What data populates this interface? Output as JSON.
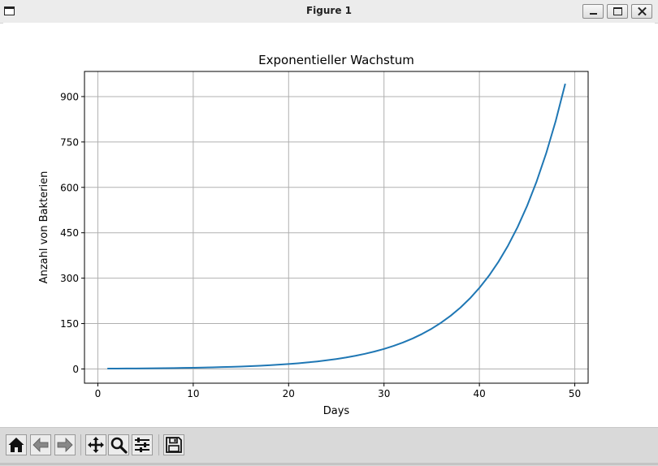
{
  "window": {
    "title": "Figure 1"
  },
  "toolbar": {
    "buttons": [
      {
        "name": "home-button",
        "icon": "home-icon"
      },
      {
        "name": "back-button",
        "icon": "arrow-left-icon"
      },
      {
        "name": "forward-button",
        "icon": "arrow-right-icon"
      },
      {
        "name": "pan-button",
        "icon": "move-icon"
      },
      {
        "name": "zoom-button",
        "icon": "magnifier-icon"
      },
      {
        "name": "configure-subplots-button",
        "icon": "sliders-icon"
      },
      {
        "name": "save-button",
        "icon": "floppy-disk-icon"
      }
    ]
  },
  "chart_data": {
    "type": "line",
    "title": "Exponentieller Wachstum",
    "xlabel": "Days",
    "ylabel": "Anzahl von Bakterien",
    "xlim": [
      -1.4,
      51.4
    ],
    "ylim": [
      -47,
      983
    ],
    "xticks": [
      0,
      10,
      20,
      30,
      40,
      50
    ],
    "yticks": [
      0,
      150,
      300,
      450,
      600,
      750,
      900
    ],
    "grid": true,
    "color": "#1f77b4",
    "series": [
      {
        "x": [
          1,
          2,
          3,
          4,
          5,
          6,
          7,
          8,
          9,
          10,
          11,
          12,
          13,
          14,
          15,
          16,
          17,
          18,
          19,
          20,
          21,
          22,
          23,
          24,
          25,
          26,
          27,
          28,
          29,
          30,
          31,
          32,
          33,
          34,
          35,
          36,
          37,
          38,
          39,
          40,
          41,
          42,
          43,
          44,
          45,
          46,
          47,
          48,
          49
        ],
        "y": [
          1.15,
          1.32,
          1.52,
          1.75,
          2.01,
          2.31,
          2.66,
          3.06,
          3.52,
          4.05,
          4.65,
          5.35,
          6.15,
          7.08,
          8.14,
          9.36,
          10.76,
          12.38,
          14.23,
          16.37,
          18.82,
          21.64,
          24.89,
          28.63,
          32.92,
          37.86,
          43.54,
          50.07,
          57.58,
          66.21,
          76.14,
          87.57,
          100.7,
          115.8,
          133.2,
          153.2,
          176.1,
          202.5,
          232.9,
          267.9,
          308.0,
          354.2,
          407.4,
          468.5,
          538.8,
          619.6,
          712.5,
          819.4,
          942.3
        ]
      }
    ]
  }
}
